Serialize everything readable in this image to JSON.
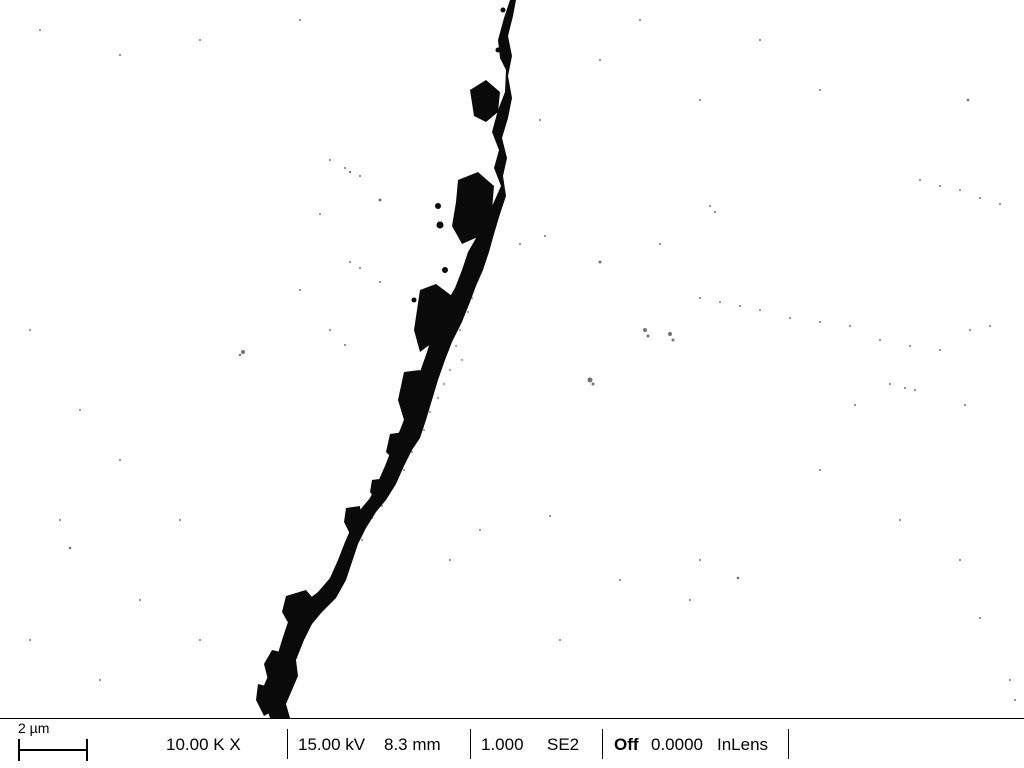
{
  "micrograph": {
    "description_icon": "sem-crack-image"
  },
  "databar": {
    "scale_label": "2 µm",
    "magnification": "10.00 K X",
    "voltage": "15.00 kV",
    "working_distance": "8.3 mm",
    "value_1": "1.000",
    "detector_1": "SE2",
    "state": "Off",
    "value_2": "0.0000",
    "detector_2": "InLens"
  }
}
